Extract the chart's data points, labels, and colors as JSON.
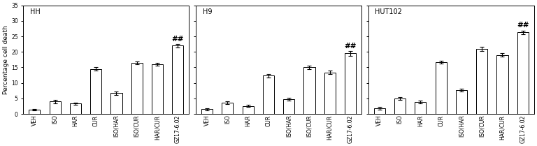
{
  "panels": [
    {
      "title": "HH",
      "categories": [
        "VEH",
        "ISO",
        "HAR",
        "CUR",
        "ISO/HAR",
        "ISO/CUR",
        "HAR/CUR",
        "GZ17-6.02"
      ],
      "values": [
        1.4,
        4.0,
        3.3,
        14.5,
        6.7,
        16.5,
        16.0,
        22.0
      ],
      "errors": [
        0.3,
        0.5,
        0.4,
        0.6,
        0.5,
        0.5,
        0.5,
        0.6
      ],
      "annotation_bar": 7,
      "annotation_text": "##"
    },
    {
      "title": "H9",
      "categories": [
        "VEH",
        "ISO",
        "HAR",
        "CUR",
        "ISO/HAR",
        "ISO/CUR",
        "HAR/CUR",
        "GZ17-6.02"
      ],
      "values": [
        1.5,
        3.6,
        2.6,
        12.3,
        4.8,
        15.0,
        13.4,
        19.5
      ],
      "errors": [
        0.3,
        0.4,
        0.4,
        0.5,
        0.5,
        0.6,
        0.5,
        0.7
      ],
      "annotation_bar": 7,
      "annotation_text": "##"
    },
    {
      "title": "HUT102",
      "categories": [
        "VEH",
        "ISO",
        "HAR",
        "CUR",
        "ISO/HAR",
        "ISO/CUR",
        "HAR/CUR",
        "GZ17-6.02"
      ],
      "values": [
        1.8,
        5.0,
        3.8,
        16.7,
        7.7,
        21.0,
        19.0,
        26.3
      ],
      "errors": [
        0.4,
        0.5,
        0.4,
        0.5,
        0.5,
        0.7,
        0.5,
        0.6
      ],
      "annotation_bar": 7,
      "annotation_text": "##"
    }
  ],
  "ylabel": "Percentage cell death",
  "ylim": [
    0,
    35
  ],
  "yticks": [
    0,
    5,
    10,
    15,
    20,
    25,
    30,
    35
  ],
  "bar_color": "white",
  "bar_edgecolor": "black",
  "bar_width": 0.55,
  "capsize": 2,
  "error_color": "black",
  "error_linewidth": 0.8,
  "title_fontsize": 7,
  "tick_fontsize": 5.5,
  "ylabel_fontsize": 6.5,
  "annotation_fontsize": 7.5,
  "annotation_fontweight": "bold",
  "background_color": "white"
}
